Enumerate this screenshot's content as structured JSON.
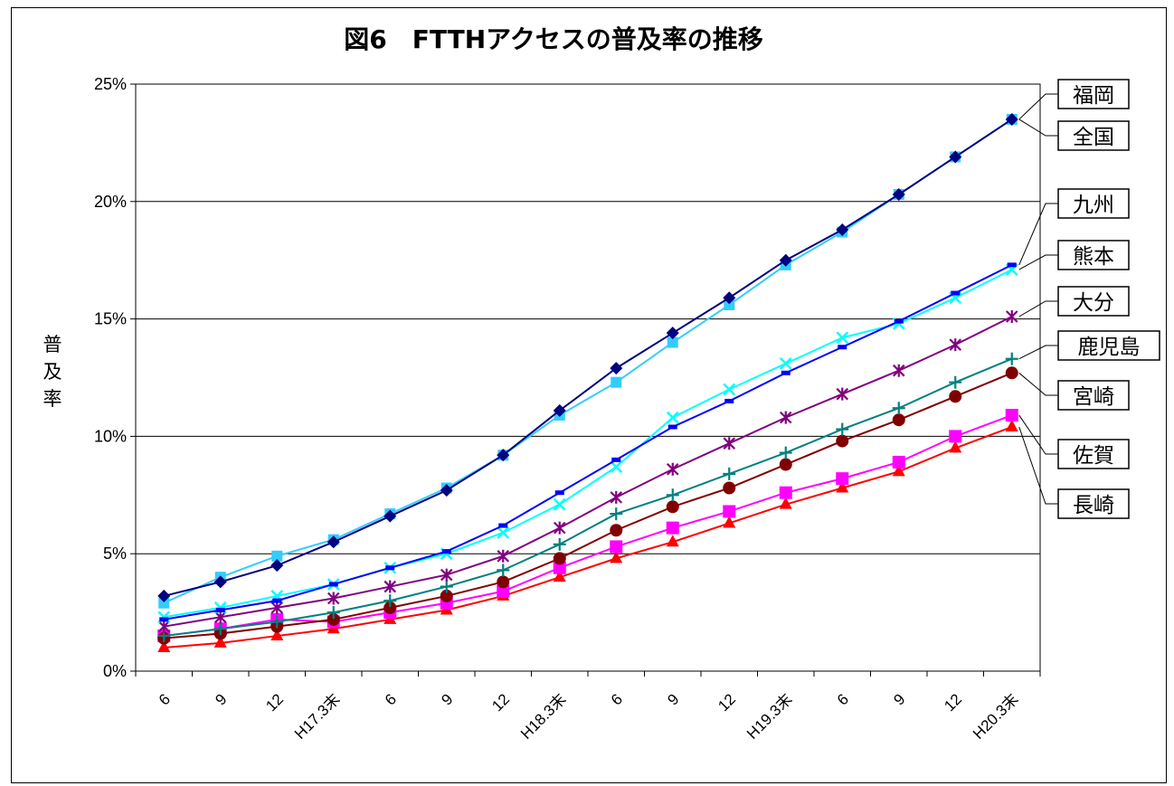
{
  "chart_data": {
    "type": "line",
    "title": "図6　FTTHアクセスの普及率の推移",
    "ylabel": "普及率",
    "xlabel": "",
    "ylim": [
      0,
      25
    ],
    "yticks": [
      0,
      5,
      10,
      15,
      20,
      25
    ],
    "ytick_labels": [
      "0%",
      "5%",
      "10%",
      "15%",
      "20%",
      "25%"
    ],
    "grid": "horizontal",
    "categories": [
      "6",
      "9",
      "12",
      "H17.3末",
      "6",
      "9",
      "12",
      "H18.3末",
      "6",
      "9",
      "12",
      "H19.3末",
      "6",
      "9",
      "12",
      "H20.3末"
    ],
    "series": [
      {
        "name": "福岡",
        "color": "#000080",
        "marker": "diamond",
        "values": [
          3.2,
          3.8,
          4.5,
          5.5,
          6.6,
          7.7,
          9.2,
          11.1,
          12.9,
          14.4,
          15.9,
          17.5,
          18.8,
          20.3,
          21.9,
          23.5
        ]
      },
      {
        "name": "全国",
        "color": "#33CCFF",
        "marker": "square-sm",
        "values": [
          2.9,
          4.0,
          4.9,
          5.6,
          6.7,
          7.8,
          9.2,
          10.9,
          12.3,
          14.0,
          15.6,
          17.3,
          18.7,
          20.3,
          21.9,
          23.5
        ]
      },
      {
        "name": "九州",
        "color": "#0000FF",
        "marker": "dash",
        "values": [
          2.2,
          2.6,
          3.0,
          3.7,
          4.4,
          5.1,
          6.2,
          7.6,
          9.0,
          10.4,
          11.5,
          12.7,
          13.8,
          14.9,
          16.1,
          17.3
        ]
      },
      {
        "name": "熊本",
        "color": "#00FFFF",
        "marker": "x",
        "values": [
          2.3,
          2.7,
          3.2,
          3.7,
          4.4,
          5.0,
          5.9,
          7.1,
          8.7,
          10.8,
          12.0,
          13.1,
          14.2,
          14.8,
          15.9,
          17.1
        ]
      },
      {
        "name": "大分",
        "color": "#800080",
        "marker": "star",
        "values": [
          1.9,
          2.3,
          2.7,
          3.1,
          3.6,
          4.1,
          4.9,
          6.1,
          7.4,
          8.6,
          9.7,
          10.8,
          11.8,
          12.8,
          13.9,
          15.1
        ]
      },
      {
        "name": "鹿児島",
        "color": "#008080",
        "marker": "plus",
        "values": [
          1.5,
          1.8,
          2.1,
          2.5,
          3.0,
          3.6,
          4.3,
          5.4,
          6.7,
          7.5,
          8.4,
          9.3,
          10.3,
          11.2,
          12.3,
          13.3
        ]
      },
      {
        "name": "宮崎",
        "color": "#800000",
        "marker": "circle",
        "values": [
          1.4,
          1.6,
          1.9,
          2.2,
          2.7,
          3.2,
          3.8,
          4.8,
          6.0,
          7.0,
          7.8,
          8.8,
          9.8,
          10.7,
          11.7,
          12.7
        ]
      },
      {
        "name": "佐賀",
        "color": "#FF00FF",
        "marker": "square",
        "values": [
          1.5,
          1.8,
          2.2,
          2.1,
          2.5,
          2.9,
          3.4,
          4.4,
          5.3,
          6.1,
          6.8,
          7.6,
          8.2,
          8.9,
          10.0,
          10.9
        ]
      },
      {
        "name": "長崎",
        "color": "#FF0000",
        "marker": "triangle",
        "values": [
          1.0,
          1.2,
          1.5,
          1.8,
          2.2,
          2.6,
          3.2,
          4.0,
          4.8,
          5.5,
          6.3,
          7.1,
          7.8,
          8.5,
          9.5,
          10.4
        ]
      }
    ],
    "legend": [
      "福岡",
      "全国",
      "九州",
      "熊本",
      "大分",
      "鹿児島",
      "宮崎",
      "佐賀",
      "長崎"
    ],
    "legend_placement": "right"
  }
}
